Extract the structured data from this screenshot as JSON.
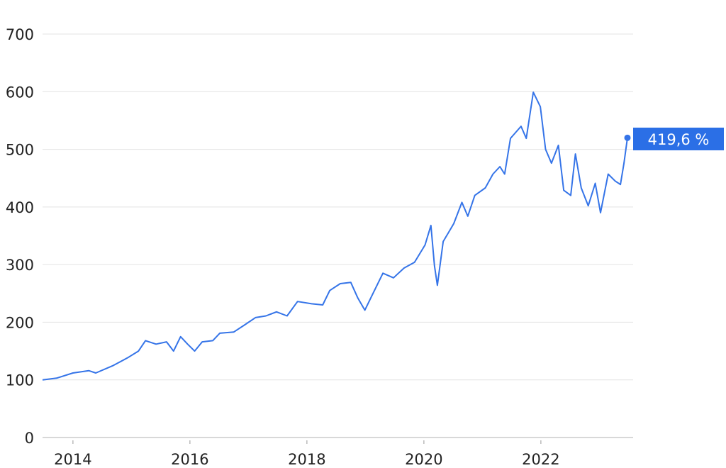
{
  "chart_data": {
    "type": "line",
    "title": "",
    "xlabel": "",
    "ylabel": "",
    "xlim": [
      2013.48,
      2023.48
    ],
    "ylim": [
      0,
      700
    ],
    "grid": true,
    "y_ticks": [
      0,
      100,
      200,
      300,
      400,
      500,
      600,
      700
    ],
    "y_tick_labels": [
      "0",
      "100",
      "200",
      "300",
      "400",
      "500",
      "600",
      "700"
    ],
    "x_ticks": [
      2014,
      2016,
      2018,
      2020,
      2022
    ],
    "x_tick_labels": [
      "2014",
      "2016",
      "2018",
      "2020",
      "2022"
    ],
    "colors": {
      "line": "#3574e8",
      "label_bg": "#2b6fe6",
      "grid": "#e3e3e3",
      "axis": "#b0b0b0"
    },
    "end_label": "419,6 %",
    "series": [
      {
        "x": [
          2013.48,
          2013.72,
          2014.0,
          2014.27,
          2014.39,
          2014.69,
          2014.93,
          2015.12,
          2015.24,
          2015.42,
          2015.6,
          2015.72,
          2015.84,
          2015.96,
          2016.08,
          2016.21,
          2016.39,
          2016.51,
          2016.75,
          2016.93,
          2017.12,
          2017.3,
          2017.48,
          2017.66,
          2017.84,
          2018.08,
          2018.27,
          2018.39,
          2018.57,
          2018.75,
          2018.87,
          2018.99,
          2019.12,
          2019.3,
          2019.48,
          2019.66,
          2019.84,
          2020.02,
          2020.12,
          2020.18,
          2020.23,
          2020.33,
          2020.51,
          2020.65,
          2020.75,
          2020.87,
          2021.05,
          2021.18,
          2021.3,
          2021.38,
          2021.48,
          2021.66,
          2021.75,
          2021.87,
          2021.99,
          2022.08,
          2022.18,
          2022.3,
          2022.39,
          2022.51,
          2022.59,
          2022.69,
          2022.81,
          2022.93,
          2023.02,
          2023.15,
          2023.27,
          2023.36,
          2023.42,
          2023.48
        ],
        "y": [
          100,
          103,
          112,
          116,
          112,
          125,
          138,
          150,
          168,
          162,
          166,
          150,
          175,
          162,
          150,
          166,
          168,
          181,
          183,
          195,
          208,
          211,
          218,
          211,
          236,
          232,
          230,
          255,
          267,
          269,
          242,
          221,
          248,
          285,
          277,
          294,
          304,
          334,
          368,
          298,
          264,
          340,
          371,
          408,
          384,
          420,
          433,
          457,
          470,
          457,
          519,
          540,
          519,
          599,
          574,
          500,
          476,
          507,
          429,
          420,
          492,
          433,
          402,
          441,
          390,
          457,
          445,
          439,
          476,
          520
        ]
      }
    ]
  }
}
